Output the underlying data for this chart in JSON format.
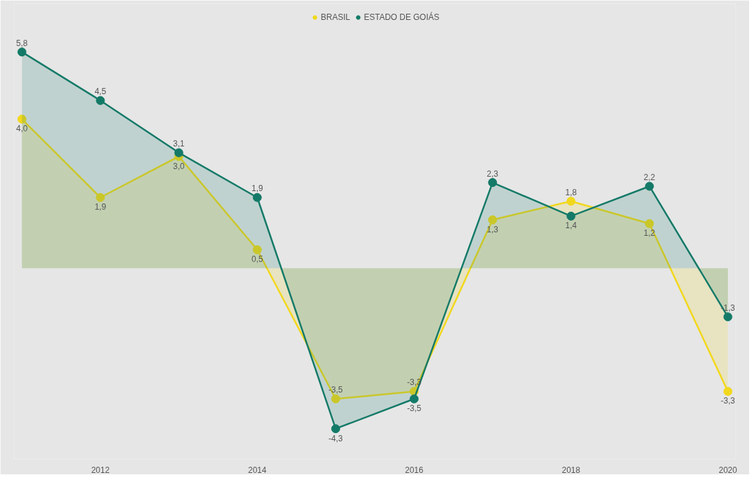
{
  "chart_data": {
    "type": "area",
    "x": [
      2011,
      2012,
      2013,
      2014,
      2015,
      2016,
      2017,
      2018,
      2019,
      2020
    ],
    "xlim": [
      2010.9,
      2020.1
    ],
    "xticks": [
      2012,
      2014,
      2016,
      2018,
      2020
    ],
    "tick_labels": "x",
    "legend": "top",
    "marker": "circle",
    "series": [
      {
        "name": "BRASIL",
        "color": "#f2d81c",
        "values": [
          4.0,
          1.9,
          3.0,
          0.5,
          -3.5,
          -3.3,
          1.3,
          1.8,
          1.2,
          -3.3
        ],
        "value_labels": [
          "4,0",
          "1,9",
          "3,0",
          "0,5",
          "-3,5",
          "-3,3",
          "1,3",
          "1,8",
          "1,2",
          "-3,3"
        ]
      },
      {
        "name": "ESTADO DE GOIÁS",
        "color": "#147a68",
        "values": [
          5.8,
          4.5,
          3.1,
          1.9,
          -4.3,
          -3.5,
          2.3,
          1.4,
          2.2,
          -1.3
        ],
        "value_labels": [
          "5,8",
          "4,5",
          "3,1",
          "1,9",
          "-4,3",
          "-3,5",
          "2,3",
          "1,4",
          "2,2",
          "-1,3"
        ]
      }
    ]
  }
}
